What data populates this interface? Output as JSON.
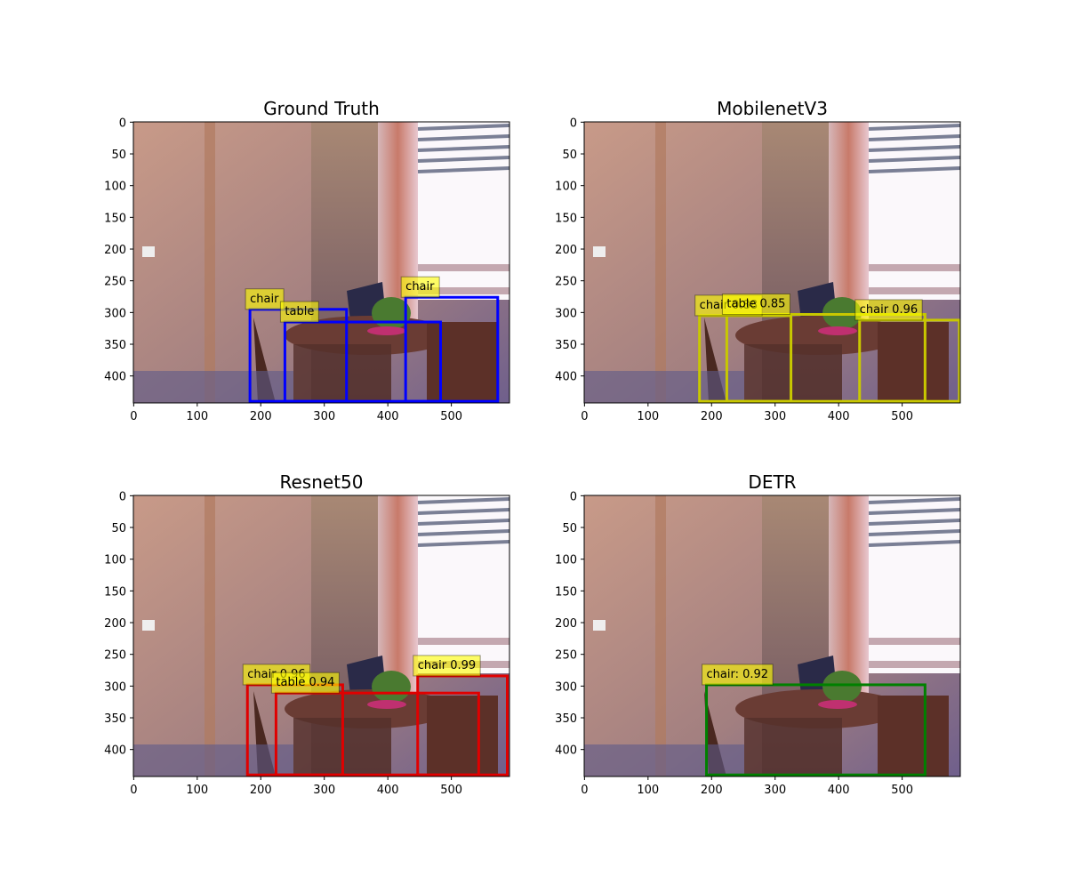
{
  "chart_data": [
    {
      "type": "image",
      "title": "Ground Truth",
      "color": "#0000ff",
      "xlim": [
        -0.5,
        591.5
      ],
      "ylim": [
        442.5,
        -0.5
      ],
      "xticks": [
        0,
        100,
        200,
        300,
        400,
        500
      ],
      "yticks": [
        0,
        50,
        100,
        150,
        200,
        250,
        300,
        350,
        400
      ],
      "boxes": [
        {
          "label": "chair",
          "x": [
            183,
            335
          ],
          "y": [
            295,
            440
          ]
        },
        {
          "label": "table",
          "x": [
            238,
            483
          ],
          "y": [
            315,
            440
          ]
        },
        {
          "label": "chair",
          "x": [
            428,
            573
          ],
          "y": [
            276,
            440
          ]
        }
      ]
    },
    {
      "type": "image",
      "title": "MobilenetV3",
      "color": "#c8c800",
      "xlim": [
        -0.5,
        591.5
      ],
      "ylim": [
        442.5,
        -0.5
      ],
      "xticks": [
        0,
        100,
        200,
        300,
        400,
        500
      ],
      "yticks": [
        0,
        50,
        100,
        150,
        200,
        250,
        300,
        350,
        400
      ],
      "boxes": [
        {
          "label": "chair 0.88",
          "x": [
            181,
            325
          ],
          "y": [
            305,
            440
          ]
        },
        {
          "label": "table 0.85",
          "x": [
            224,
            536
          ],
          "y": [
            303,
            440
          ]
        },
        {
          "label": "chair 0.96",
          "x": [
            433,
            590
          ],
          "y": [
            312,
            440
          ]
        }
      ]
    },
    {
      "type": "image",
      "title": "Resnet50",
      "color": "#e00000",
      "xlim": [
        -0.5,
        591.5
      ],
      "ylim": [
        442.5,
        -0.5
      ],
      "xticks": [
        0,
        100,
        200,
        300,
        400,
        500
      ],
      "yticks": [
        0,
        50,
        100,
        150,
        200,
        250,
        300,
        350,
        400
      ],
      "boxes": [
        {
          "label": "chair 0.96",
          "x": [
            179,
            329
          ],
          "y": [
            298,
            440
          ]
        },
        {
          "label": "table 0.94",
          "x": [
            224,
            543
          ],
          "y": [
            311,
            440
          ]
        },
        {
          "label": "chair 0.99",
          "x": [
            447,
            588
          ],
          "y": [
            284,
            440
          ]
        }
      ]
    },
    {
      "type": "image",
      "title": "DETR",
      "color": "#008000",
      "xlim": [
        -0.5,
        591.5
      ],
      "ylim": [
        442.5,
        -0.5
      ],
      "xticks": [
        0,
        100,
        200,
        300,
        400,
        500
      ],
      "yticks": [
        0,
        50,
        100,
        150,
        200,
        250,
        300,
        350,
        400
      ],
      "boxes": [
        {
          "label": "chair: 0.92",
          "x": [
            192,
            536
          ],
          "y": [
            298,
            440
          ]
        }
      ]
    }
  ]
}
